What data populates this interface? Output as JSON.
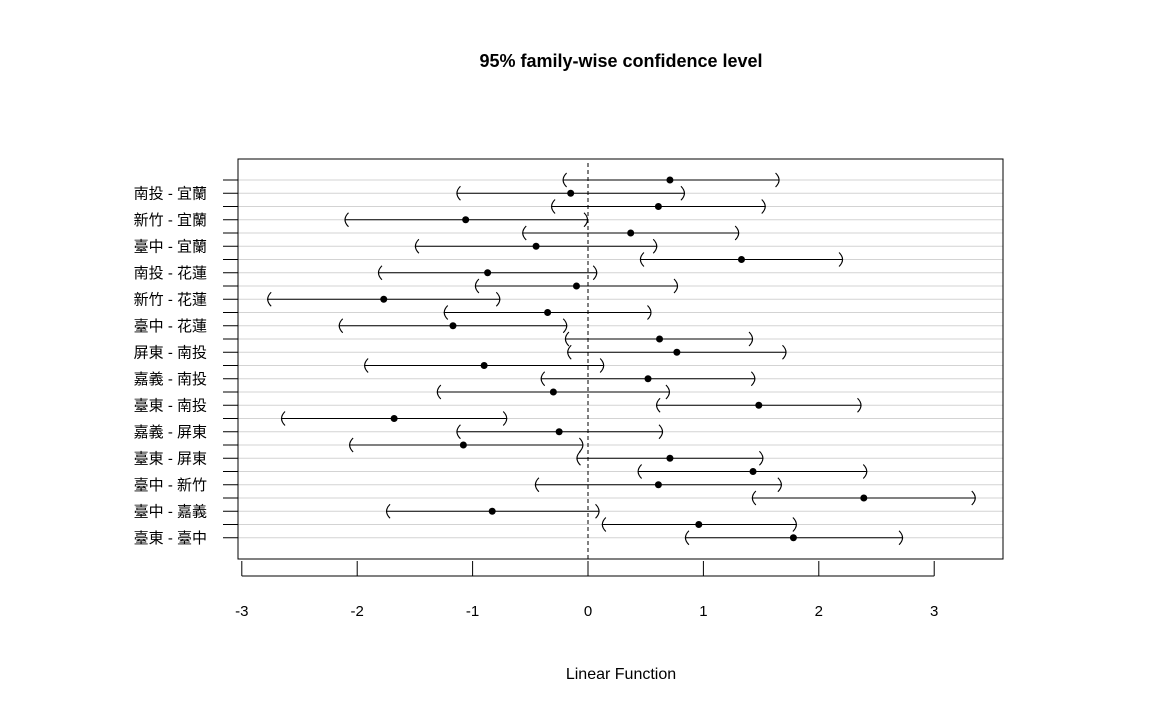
{
  "chart_data": {
    "type": "errorbar",
    "title": "95% family-wise confidence level",
    "xlabel": "Linear Function",
    "ylabel": "",
    "xlim": [
      -3.04,
      3.6
    ],
    "xticks": [
      -3,
      -2,
      -1,
      0,
      1,
      2,
      3
    ],
    "reference_line": 0,
    "grid": true,
    "comparisons": [
      {
        "label": "",
        "estimate": 0.71,
        "lower": -0.22,
        "upper": 1.66
      },
      {
        "label": "南投 - 宜蘭",
        "estimate": -0.15,
        "lower": -1.14,
        "upper": 0.84
      },
      {
        "label": "",
        "estimate": 0.61,
        "lower": -0.32,
        "upper": 1.54
      },
      {
        "label": "新竹 - 宜蘭",
        "estimate": -1.06,
        "lower": -2.11,
        "upper": 0.0
      },
      {
        "label": "",
        "estimate": 0.37,
        "lower": -0.57,
        "upper": 1.31
      },
      {
        "label": "臺中 - 宜蘭",
        "estimate": -0.45,
        "lower": -1.5,
        "upper": 0.6
      },
      {
        "label": "",
        "estimate": 1.33,
        "lower": 0.45,
        "upper": 2.21
      },
      {
        "label": "南投 - 花蓮",
        "estimate": -0.87,
        "lower": -1.82,
        "upper": 0.08
      },
      {
        "label": "",
        "estimate": -0.1,
        "lower": -0.98,
        "upper": 0.78
      },
      {
        "label": "新竹 - 花蓮",
        "estimate": -1.77,
        "lower": -2.78,
        "upper": -0.76
      },
      {
        "label": "",
        "estimate": -0.35,
        "lower": -1.25,
        "upper": 0.55
      },
      {
        "label": "臺中 - 花蓮",
        "estimate": -1.17,
        "lower": -2.16,
        "upper": -0.18
      },
      {
        "label": "",
        "estimate": 0.62,
        "lower": -0.2,
        "upper": 1.43
      },
      {
        "label": "屏東 - 南投",
        "estimate": 0.77,
        "lower": -0.18,
        "upper": 1.72
      },
      {
        "label": "",
        "estimate": -0.9,
        "lower": -1.94,
        "upper": 0.14
      },
      {
        "label": "嘉義 - 南投",
        "estimate": 0.52,
        "lower": -0.41,
        "upper": 1.45
      },
      {
        "label": "",
        "estimate": -0.3,
        "lower": -1.31,
        "upper": 0.71
      },
      {
        "label": "臺東 - 南投",
        "estimate": 1.48,
        "lower": 0.59,
        "upper": 2.37
      },
      {
        "label": "",
        "estimate": -1.68,
        "lower": -2.66,
        "upper": -0.7
      },
      {
        "label": "嘉義 - 屏東",
        "estimate": -0.25,
        "lower": -1.14,
        "upper": 0.65
      },
      {
        "label": "",
        "estimate": -1.08,
        "lower": -2.07,
        "upper": -0.04
      },
      {
        "label": "臺東 - 屏東",
        "estimate": 0.71,
        "lower": -0.1,
        "upper": 1.52
      },
      {
        "label": "",
        "estimate": 1.43,
        "lower": 0.43,
        "upper": 2.42
      },
      {
        "label": "臺中 - 新竹",
        "estimate": 0.61,
        "lower": -0.46,
        "upper": 1.68
      },
      {
        "label": "",
        "estimate": 2.39,
        "lower": 1.42,
        "upper": 3.36
      },
      {
        "label": "臺中 - 嘉義",
        "estimate": -0.83,
        "lower": -1.75,
        "upper": 0.1
      },
      {
        "label": "",
        "estimate": 0.96,
        "lower": 0.12,
        "upper": 1.81
      },
      {
        "label": "臺東 - 臺中",
        "estimate": 1.78,
        "lower": 0.84,
        "upper": 2.73
      }
    ]
  }
}
